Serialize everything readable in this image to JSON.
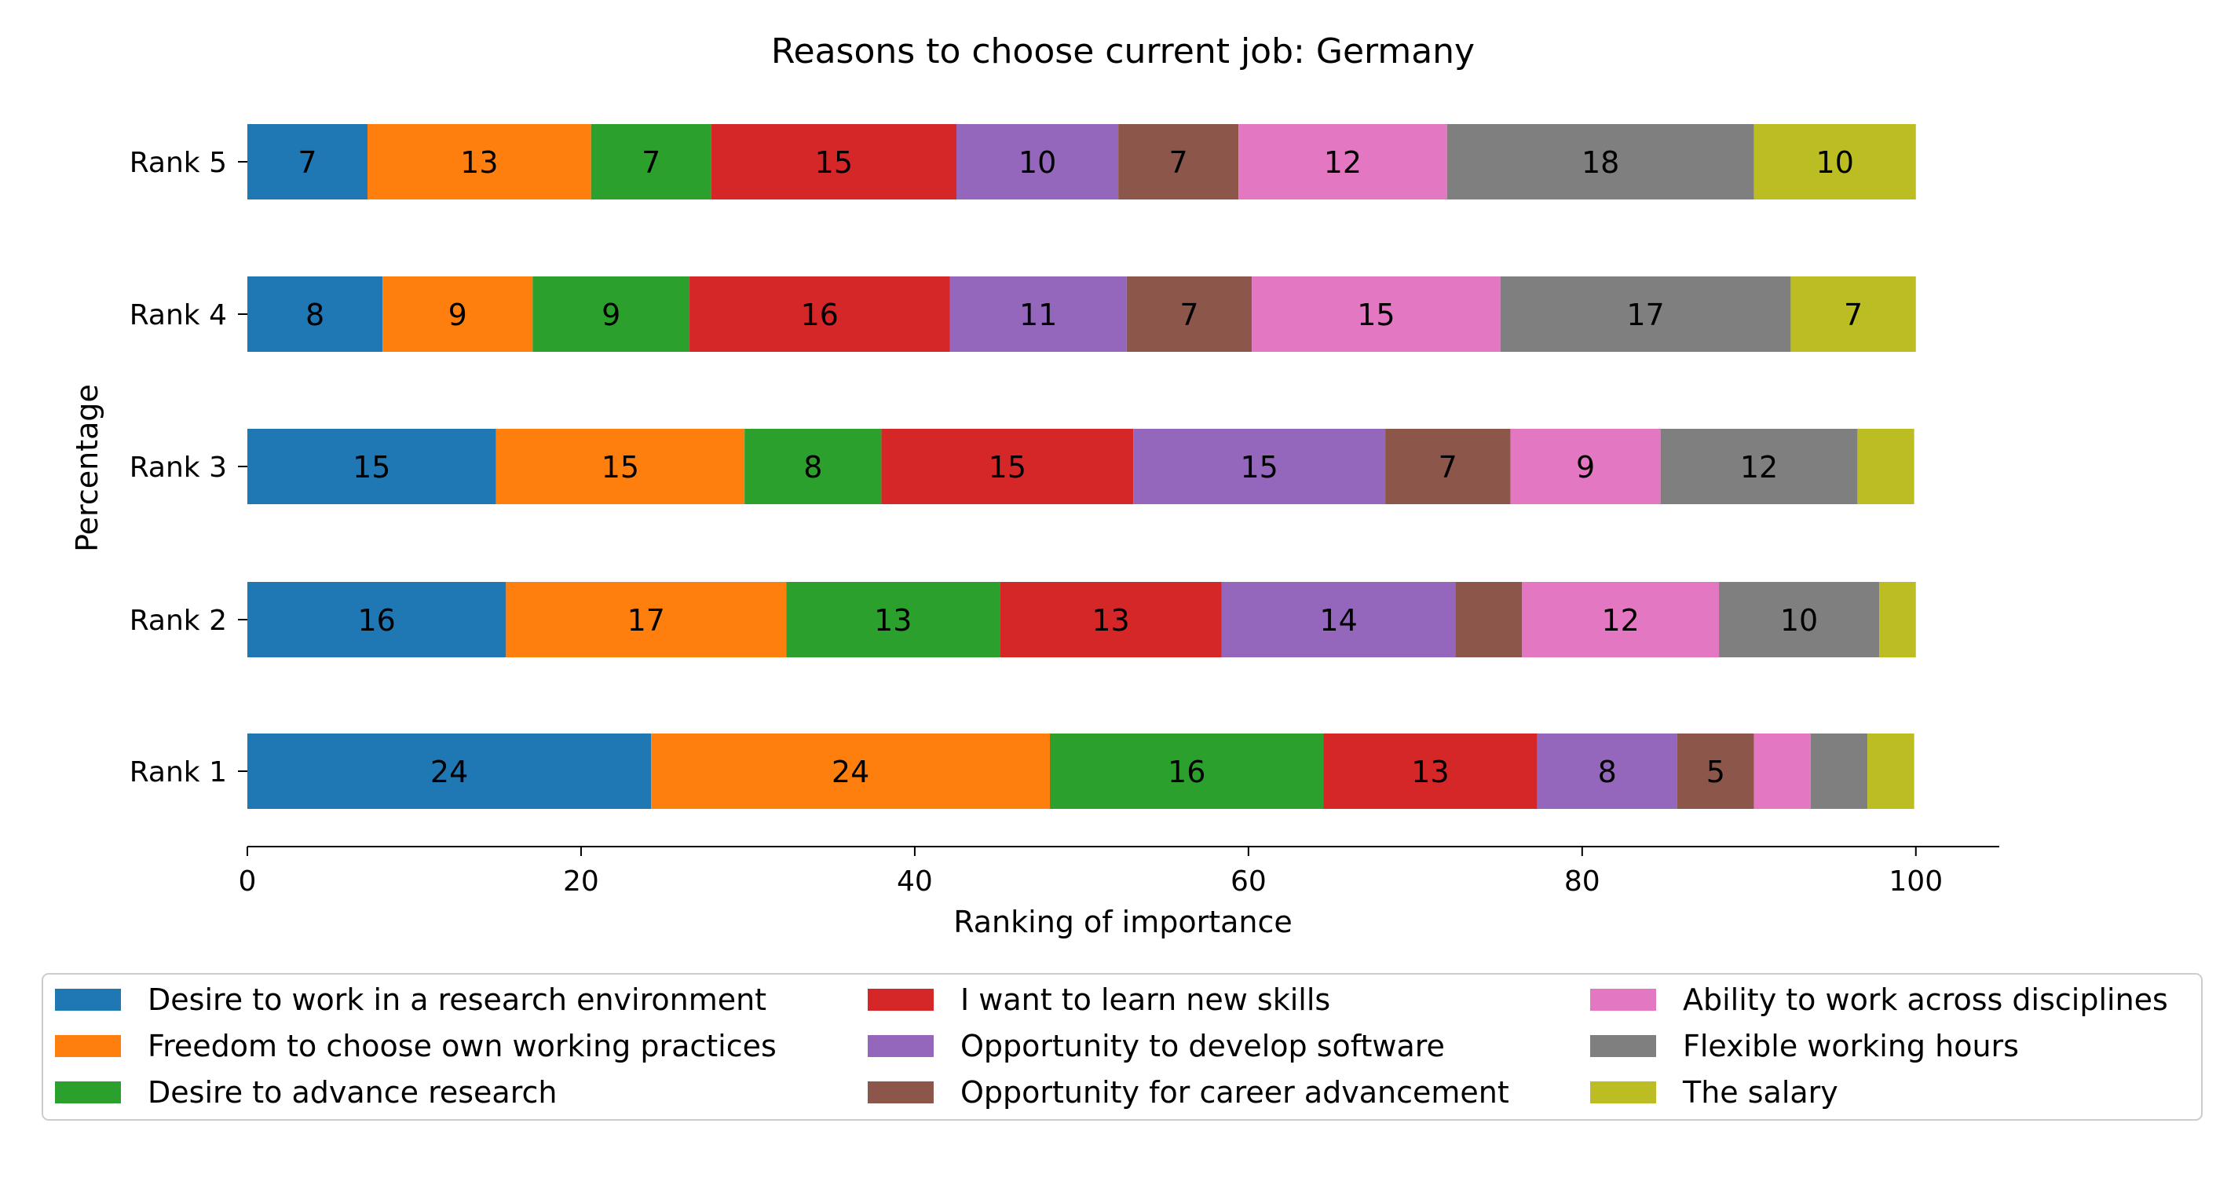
{
  "chart_data": {
    "type": "bar",
    "orientation": "horizontal",
    "stacked": true,
    "title": "Reasons to choose current job: Germany",
    "xlabel": "Ranking of importance",
    "ylabel": "Percentage",
    "xlim": [
      0,
      105
    ],
    "x_ticks": [
      0,
      20,
      40,
      60,
      80,
      100
    ],
    "grid": false,
    "legend_position": "bottom",
    "categories": [
      "Rank 1",
      "Rank 2",
      "Rank 3",
      "Rank 4",
      "Rank 5"
    ],
    "series": [
      {
        "name": "Desire to work in a research environment",
        "color": "#1f77b4",
        "values": [
          24.2,
          15.5,
          14.9,
          8.1,
          7.2
        ]
      },
      {
        "name": "Freedom to choose own working practices",
        "color": "#ff7f0e",
        "values": [
          23.9,
          16.8,
          14.9,
          9.0,
          13.4
        ]
      },
      {
        "name": "Desire to advance research",
        "color": "#2ca02c",
        "values": [
          16.4,
          12.8,
          8.2,
          9.4,
          7.2
        ]
      },
      {
        "name": "I want to learn new skills",
        "color": "#d62728",
        "values": [
          12.8,
          13.3,
          15.1,
          15.6,
          14.7
        ]
      },
      {
        "name": "Opportunity to develop software",
        "color": "#9467bd",
        "values": [
          8.4,
          14.0,
          15.1,
          10.6,
          9.7
        ]
      },
      {
        "name": "Opportunity for career advancement",
        "color": "#8c564b",
        "values": [
          4.6,
          4.0,
          7.5,
          7.5,
          7.2
        ]
      },
      {
        "name": "Ability to work across disciplines",
        "color": "#e377c2",
        "values": [
          3.4,
          11.8,
          9.0,
          14.9,
          12.5
        ]
      },
      {
        "name": "Flexible working hours",
        "color": "#7f7f7f",
        "values": [
          3.4,
          9.6,
          11.8,
          17.4,
          18.4
        ]
      },
      {
        "name": "The salary",
        "color": "#bcbd22",
        "values": [
          2.8,
          2.2,
          3.4,
          7.5,
          9.7
        ]
      }
    ],
    "data_labels": [
      [
        "24",
        "24",
        "16",
        "13",
        "8",
        "5",
        "",
        "",
        ""
      ],
      [
        "16",
        "17",
        "13",
        "13",
        "14",
        "",
        "12",
        "10",
        ""
      ],
      [
        "15",
        "15",
        "8",
        "15",
        "15",
        "7",
        "9",
        "12",
        ""
      ],
      [
        "8",
        "9",
        "9",
        "16",
        "11",
        "7",
        "15",
        "17",
        "7"
      ],
      [
        "7",
        "13",
        "7",
        "15",
        "10",
        "7",
        "12",
        "18",
        "10"
      ]
    ]
  }
}
